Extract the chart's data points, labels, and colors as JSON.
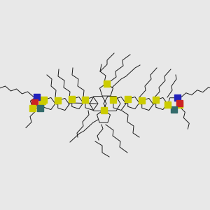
{
  "bg": "#e8e8e8",
  "lc": "#1a1a1a",
  "lw": 0.7,
  "S_color": "#cccc00",
  "N_color": "#2222bb",
  "O_color": "#cc2222",
  "teal_color": "#336b6b",
  "sq": 4.5
}
